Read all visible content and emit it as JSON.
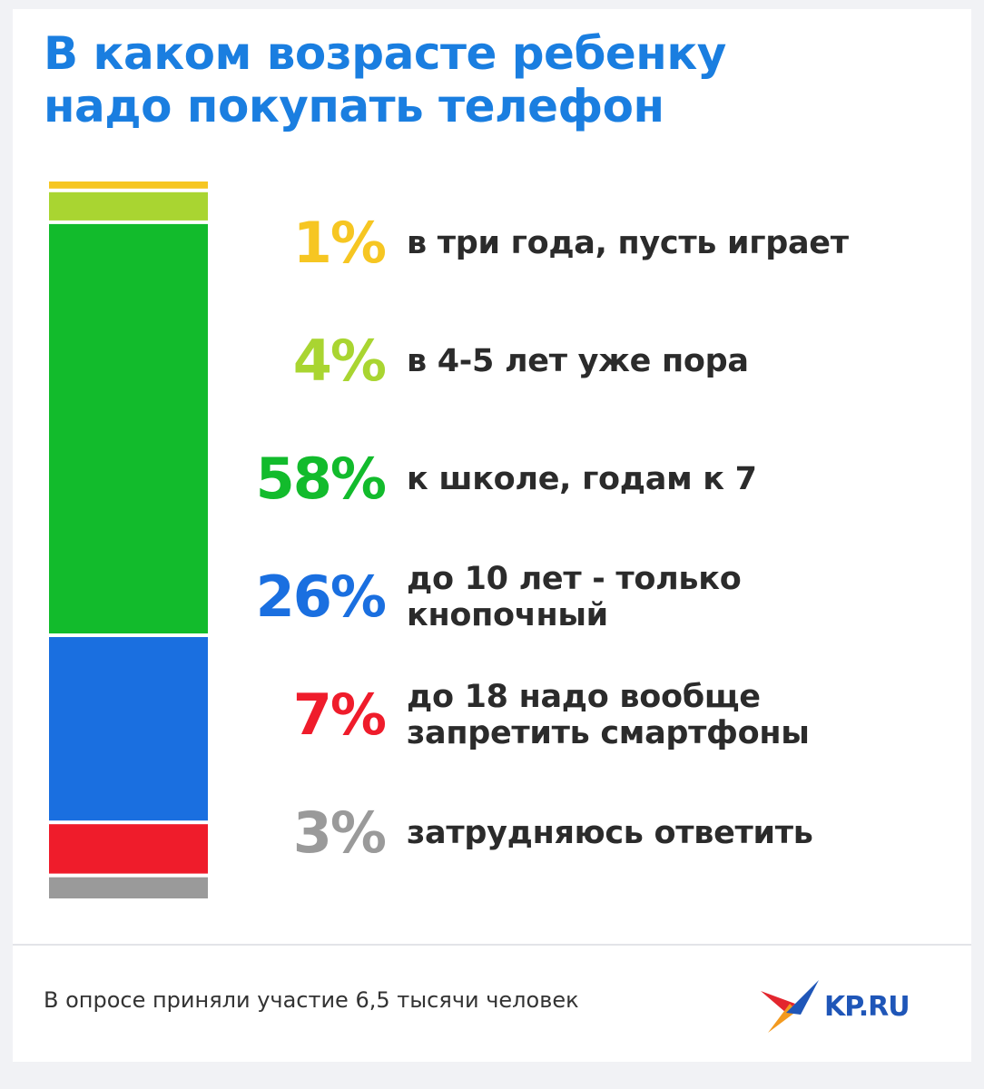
{
  "title": {
    "line1": "В каком возрасте ребенку",
    "line2": "надо покупать телефон"
  },
  "chart_data": {
    "type": "bar",
    "stacked": true,
    "orientation": "vertical",
    "series": [
      {
        "value": 1,
        "pct_label": "1%",
        "label_lines": [
          "в три года, пусть играет"
        ],
        "color": "#f6c622"
      },
      {
        "value": 4,
        "pct_label": "4%",
        "label_lines": [
          "в 4-5 лет уже пора"
        ],
        "color": "#a9d531"
      },
      {
        "value": 58,
        "pct_label": "58%",
        "label_lines": [
          "к школе, годам к 7"
        ],
        "color": "#12bb2c"
      },
      {
        "value": 26,
        "pct_label": "26%",
        "label_lines": [
          "до 10 лет - только",
          "кнопочный"
        ],
        "color": "#1a6fe0"
      },
      {
        "value": 7,
        "pct_label": "7%",
        "label_lines": [
          "до 18 надо вообще",
          "запретить смартфоны"
        ],
        "color": "#ef1c2b"
      },
      {
        "value": 3,
        "pct_label": "3%",
        "label_lines": [
          "затрудняюсь ответить"
        ],
        "color": "#9a9a9a"
      }
    ]
  },
  "footer": {
    "note": "В опросе приняли участие 6,5 тысячи человек",
    "logo_text": "KP.RU",
    "logo_colors": {
      "red": "#e3262e",
      "orange": "#f39a1f",
      "blue": "#1f56b8"
    }
  }
}
